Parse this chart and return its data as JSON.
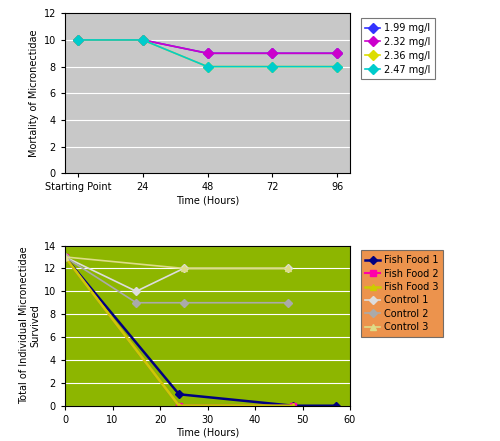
{
  "top": {
    "x_labels": [
      "Starting Point",
      "24",
      "48",
      "72",
      "96"
    ],
    "x_numeric": [
      0,
      1,
      2,
      3,
      4
    ],
    "series": [
      {
        "label": "1.99 mg/l",
        "color": "#3333FF",
        "marker": "D",
        "markersize": 5,
        "linewidth": 1.2,
        "values": [
          10,
          10,
          9,
          9,
          9
        ]
      },
      {
        "label": "2.32 mg/l",
        "color": "#CC00CC",
        "marker": "D",
        "markersize": 5,
        "linewidth": 1.2,
        "values": [
          10,
          10,
          9,
          9,
          9
        ]
      },
      {
        "label": "2.36 mg/l",
        "color": "#DDDD00",
        "marker": "D",
        "markersize": 5,
        "linewidth": 1.2,
        "values": [
          10,
          10,
          8,
          8,
          8
        ]
      },
      {
        "label": "2.47 mg/l",
        "color": "#00CCCC",
        "marker": "D",
        "markersize": 5,
        "linewidth": 1.2,
        "values": [
          10,
          10,
          8,
          8,
          8
        ]
      }
    ],
    "ylabel": "Mortality of Micronectidae",
    "xlabel": "Time (Hours)",
    "ylim": [
      0,
      12
    ],
    "yticks": [
      0,
      2,
      4,
      6,
      8,
      10,
      12
    ],
    "bg_color": "#C8C8C8",
    "legend_bg": "#FFFFFF",
    "outer_bg": "#FFFFFF"
  },
  "bottom": {
    "x_numeric": [
      0,
      1,
      24,
      25,
      47,
      48,
      57
    ],
    "series": [
      {
        "label": "Fish Food 1",
        "color": "#000080",
        "marker": "D",
        "markersize": 4,
        "linewidth": 1.8,
        "x": [
          0,
          24,
          48,
          57
        ],
        "values": [
          13,
          1,
          0,
          0
        ]
      },
      {
        "label": "Fish Food 2",
        "color": "#FF00AA",
        "marker": "s",
        "markersize": 5,
        "linewidth": 1.5,
        "x": [
          0,
          24,
          48
        ],
        "values": [
          13,
          0,
          0
        ]
      },
      {
        "label": "Fish Food 3",
        "color": "#CCCC00",
        "marker": "^",
        "markersize": 5,
        "linewidth": 1.8,
        "x": [
          0,
          24,
          48
        ],
        "values": [
          13,
          0,
          0
        ]
      },
      {
        "label": "Control 1",
        "color": "#DDDDDD",
        "marker": "D",
        "markersize": 4,
        "linewidth": 1.2,
        "x": [
          0,
          15,
          25,
          47
        ],
        "values": [
          13,
          10,
          12,
          12
        ]
      },
      {
        "label": "Control 2",
        "color": "#AAAAAA",
        "marker": "D",
        "markersize": 4,
        "linewidth": 1.2,
        "x": [
          0,
          15,
          25,
          47
        ],
        "values": [
          13,
          9,
          9,
          9
        ]
      },
      {
        "label": "Control 3",
        "color": "#DDDD88",
        "marker": "^",
        "markersize": 5,
        "linewidth": 1.2,
        "x": [
          0,
          25,
          47
        ],
        "values": [
          13,
          12,
          12
        ]
      }
    ],
    "ylabel": "Total of Individual Micronectidae\nSurvived",
    "xlabel": "Time (Hours)",
    "ylim": [
      0,
      14
    ],
    "yticks": [
      0,
      2,
      4,
      6,
      8,
      10,
      12,
      14
    ],
    "xlim": [
      0,
      60
    ],
    "xticks": [
      0,
      10,
      20,
      30,
      40,
      50,
      60
    ],
    "bg_color": "#8DB600",
    "legend_bg": "#E87820",
    "outer_bg": "#FFFFFF"
  }
}
